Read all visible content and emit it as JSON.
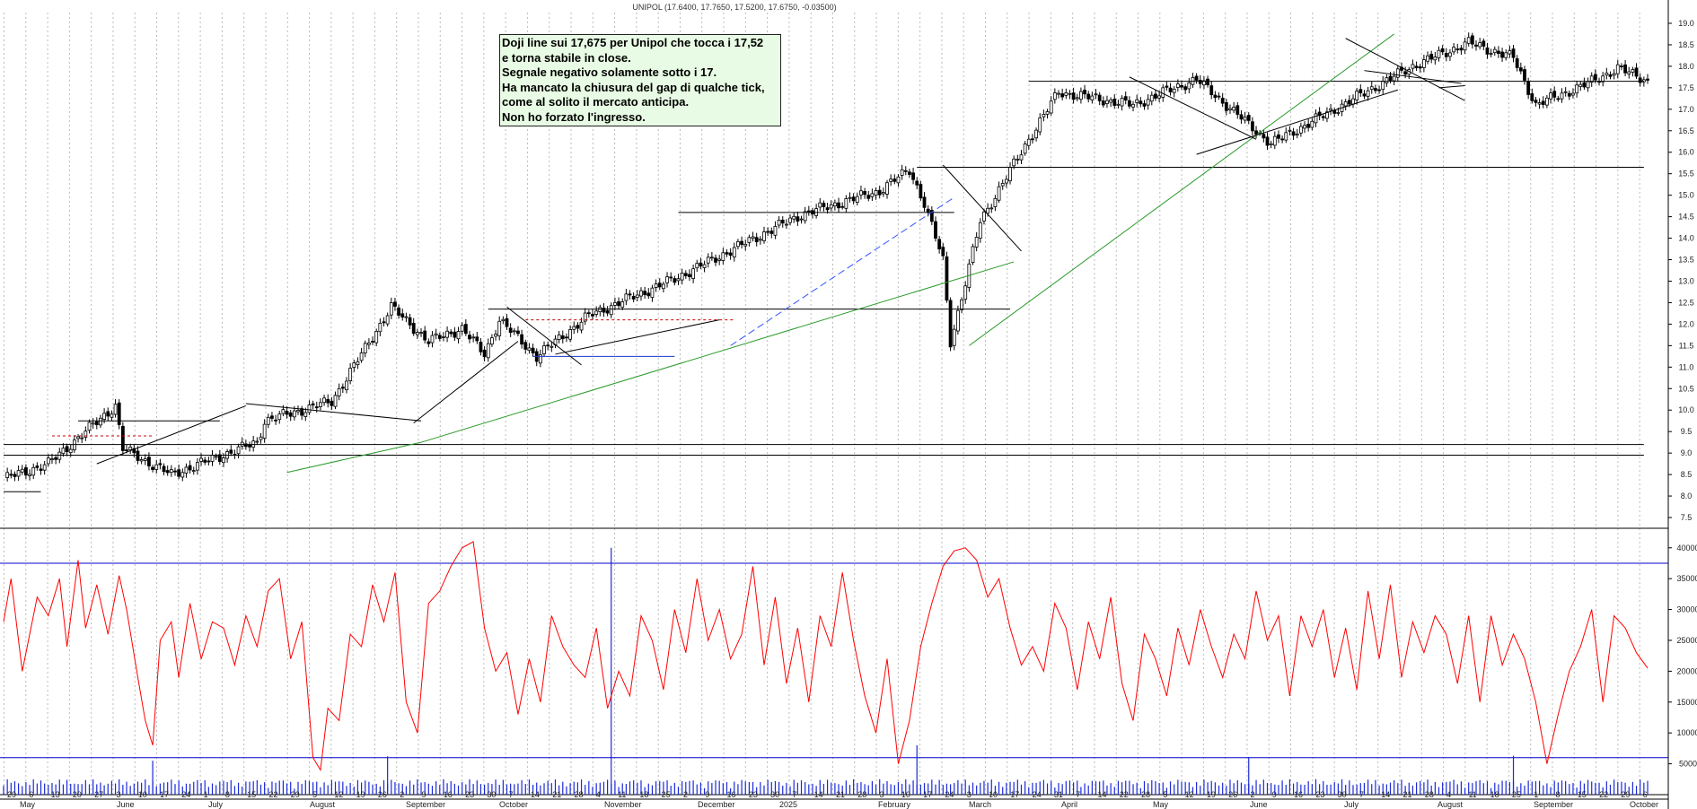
{
  "chart_data": {
    "type": "candlestick",
    "title": "UNIPOL (17.6400, 17.7650, 17.5200, 17.6750, -0.03500)",
    "price_ticks": [
      "7.5",
      "8.0",
      "8.5",
      "9.0",
      "9.5",
      "10.0",
      "10.5",
      "11.0",
      "11.5",
      "12.0",
      "12.5",
      "13.0",
      "13.5",
      "14.0",
      "14.5",
      "15.0",
      "15.5",
      "16.0",
      "16.5",
      "17.0",
      "17.5",
      "18.0",
      "18.5",
      "19.0"
    ],
    "volume_ticks": [
      "5000",
      "10000",
      "15000",
      "20000",
      "25000",
      "30000",
      "35000",
      "40000"
    ],
    "price_ylim": [
      7.25,
      19.25
    ],
    "volume_ylim": [
      0,
      42000
    ],
    "x_day_labels": [
      "29",
      "6",
      "13",
      "20",
      "27",
      "3",
      "10",
      "17",
      "24",
      "1",
      "8",
      "15",
      "22",
      "29",
      "5",
      "12",
      "19",
      "26",
      "2",
      "9",
      "16",
      "23",
      "30",
      "7",
      "14",
      "21",
      "28",
      "4",
      "11",
      "18",
      "25",
      "2",
      "9",
      "16",
      "23",
      "30",
      "7",
      "14",
      "21",
      "28",
      "3",
      "10",
      "17",
      "24",
      "3",
      "10",
      "17",
      "24",
      "31",
      "7",
      "14",
      "22",
      "28",
      "5",
      "12",
      "19",
      "26",
      "2",
      "9",
      "16",
      "23",
      "30",
      "7",
      "14",
      "21",
      "28",
      "4",
      "11",
      "18",
      "25",
      "1",
      "8",
      "15",
      "22",
      "29",
      "6"
    ],
    "x_month_labels": [
      "May",
      "June",
      "July",
      "August",
      "September",
      "October",
      "November",
      "December",
      "2025",
      "February",
      "March",
      "April",
      "May",
      "June",
      "July",
      "August",
      "September",
      "October"
    ],
    "price": {
      "closes": [
        8.35,
        8.45,
        8.6,
        8.9,
        9.1,
        9.3,
        9.55,
        9.65,
        9.45,
        9.25,
        9.05,
        9.2,
        9.4,
        9.3,
        9.5,
        9.75,
        9.85,
        9.95,
        10.05,
        9.8,
        9.5,
        8.8,
        8.9,
        9.0,
        9.1,
        9.25,
        9.4,
        9.6,
        9.7,
        9.55,
        9.9,
        10.3,
        10.55,
        10.75,
        10.95,
        11.4,
        12.0,
        12.3,
        11.75,
        11.6,
        11.5,
        11.35,
        11.25,
        11.5,
        11.85,
        11.5,
        11.4,
        11.55,
        11.8,
        11.95,
        11.85,
        12.1,
        12.3,
        12.7,
        12.95,
        13.15,
        13.35,
        13.1,
        13.5,
        13.85,
        14.2,
        14.5,
        14.25,
        14.45,
        14.7,
        15.1,
        15.45,
        15.3,
        14.8,
        14.1,
        12.3,
        13.2,
        14.3,
        14.75,
        15.3,
        15.9,
        16.6,
        17.0,
        17.25,
        17.3,
        17.25,
        17.45,
        17.6,
        17.1,
        16.9,
        16.6,
        16.4,
        16.25,
        16.6,
        16.85,
        17.1,
        17.6,
        17.95,
        18.35,
        18.3,
        18.2,
        17.75,
        17.4,
        17.5,
        17.65,
        17.95,
        17.675
      ],
      "pivots": [
        {
          "d": 0,
          "v": 8.4
        },
        {
          "d": 12,
          "v": 8.75
        },
        {
          "d": 30,
          "v": 10.1
        },
        {
          "d": 32,
          "v": 9.1
        },
        {
          "d": 45,
          "v": 8.5
        },
        {
          "d": 68,
          "v": 9.25
        },
        {
          "d": 70,
          "v": 9.75
        },
        {
          "d": 88,
          "v": 10.2
        },
        {
          "d": 104,
          "v": 12.4
        },
        {
          "d": 114,
          "v": 11.6
        },
        {
          "d": 123,
          "v": 11.9
        },
        {
          "d": 129,
          "v": 11.3
        },
        {
          "d": 133,
          "v": 12.1
        },
        {
          "d": 143,
          "v": 11.25
        },
        {
          "d": 157,
          "v": 12.2
        },
        {
          "d": 180,
          "v": 13.05
        },
        {
          "d": 214,
          "v": 14.55
        },
        {
          "d": 235,
          "v": 15.1
        },
        {
          "d": 243,
          "v": 15.6
        },
        {
          "d": 247,
          "v": 14.8
        },
        {
          "d": 252,
          "v": 13.5
        },
        {
          "d": 254,
          "v": 11.6
        },
        {
          "d": 257,
          "v": 12.6
        },
        {
          "d": 262,
          "v": 14.4
        },
        {
          "d": 275,
          "v": 16.3
        },
        {
          "d": 283,
          "v": 17.4
        },
        {
          "d": 303,
          "v": 17.1
        },
        {
          "d": 320,
          "v": 17.7
        },
        {
          "d": 340,
          "v": 16.2
        },
        {
          "d": 355,
          "v": 16.9
        },
        {
          "d": 378,
          "v": 18.0
        },
        {
          "d": 393,
          "v": 18.55
        },
        {
          "d": 405,
          "v": 18.2
        },
        {
          "d": 411,
          "v": 17.1
        },
        {
          "d": 425,
          "v": 17.6
        },
        {
          "d": 433,
          "v": 17.95
        },
        {
          "d": 441,
          "v": 17.675
        }
      ]
    },
    "oscillator": {
      "upper_level": 37500,
      "lower_level": 6000,
      "pivots": [
        {
          "d": 0,
          "v": 28000
        },
        {
          "d": 2,
          "v": 35000
        },
        {
          "d": 5,
          "v": 20000
        },
        {
          "d": 9,
          "v": 32000
        },
        {
          "d": 12,
          "v": 29000
        },
        {
          "d": 15,
          "v": 35000
        },
        {
          "d": 17,
          "v": 24000
        },
        {
          "d": 20,
          "v": 38000
        },
        {
          "d": 22,
          "v": 27000
        },
        {
          "d": 25,
          "v": 34000
        },
        {
          "d": 28,
          "v": 26000
        },
        {
          "d": 31,
          "v": 35500
        },
        {
          "d": 33,
          "v": 30000
        },
        {
          "d": 36,
          "v": 19000
        },
        {
          "d": 38,
          "v": 12000
        },
        {
          "d": 40,
          "v": 8000
        },
        {
          "d": 42,
          "v": 25000
        },
        {
          "d": 45,
          "v": 28000
        },
        {
          "d": 47,
          "v": 19000
        },
        {
          "d": 50,
          "v": 31000
        },
        {
          "d": 53,
          "v": 22000
        },
        {
          "d": 56,
          "v": 28000
        },
        {
          "d": 59,
          "v": 27000
        },
        {
          "d": 62,
          "v": 21000
        },
        {
          "d": 65,
          "v": 29000
        },
        {
          "d": 68,
          "v": 24000
        },
        {
          "d": 71,
          "v": 33000
        },
        {
          "d": 74,
          "v": 35000
        },
        {
          "d": 77,
          "v": 22000
        },
        {
          "d": 80,
          "v": 28000
        },
        {
          "d": 83,
          "v": 6000
        },
        {
          "d": 85,
          "v": 4000
        },
        {
          "d": 87,
          "v": 14000
        },
        {
          "d": 90,
          "v": 12000
        },
        {
          "d": 93,
          "v": 26000
        },
        {
          "d": 96,
          "v": 24000
        },
        {
          "d": 99,
          "v": 34000
        },
        {
          "d": 102,
          "v": 28000
        },
        {
          "d": 105,
          "v": 36000
        },
        {
          "d": 108,
          "v": 15000
        },
        {
          "d": 111,
          "v": 10000
        },
        {
          "d": 114,
          "v": 31000
        },
        {
          "d": 117,
          "v": 33000
        },
        {
          "d": 120,
          "v": 37000
        },
        {
          "d": 123,
          "v": 40000
        },
        {
          "d": 126,
          "v": 41000
        },
        {
          "d": 129,
          "v": 27000
        },
        {
          "d": 132,
          "v": 20000
        },
        {
          "d": 135,
          "v": 23000
        },
        {
          "d": 138,
          "v": 13000
        },
        {
          "d": 141,
          "v": 22000
        },
        {
          "d": 144,
          "v": 15000
        },
        {
          "d": 147,
          "v": 29000
        },
        {
          "d": 150,
          "v": 24000
        },
        {
          "d": 153,
          "v": 21000
        },
        {
          "d": 156,
          "v": 19000
        },
        {
          "d": 159,
          "v": 27000
        },
        {
          "d": 162,
          "v": 14000
        },
        {
          "d": 165,
          "v": 20000
        },
        {
          "d": 168,
          "v": 16000
        },
        {
          "d": 171,
          "v": 29000
        },
        {
          "d": 174,
          "v": 25000
        },
        {
          "d": 177,
          "v": 17000
        },
        {
          "d": 180,
          "v": 30000
        },
        {
          "d": 183,
          "v": 23000
        },
        {
          "d": 186,
          "v": 35000
        },
        {
          "d": 189,
          "v": 25000
        },
        {
          "d": 192,
          "v": 30000
        },
        {
          "d": 195,
          "v": 22000
        },
        {
          "d": 198,
          "v": 26000
        },
        {
          "d": 201,
          "v": 37000
        },
        {
          "d": 204,
          "v": 21000
        },
        {
          "d": 207,
          "v": 32000
        },
        {
          "d": 210,
          "v": 18000
        },
        {
          "d": 213,
          "v": 27000
        },
        {
          "d": 216,
          "v": 15000
        },
        {
          "d": 219,
          "v": 29000
        },
        {
          "d": 222,
          "v": 24000
        },
        {
          "d": 225,
          "v": 36000
        },
        {
          "d": 228,
          "v": 25000
        },
        {
          "d": 231,
          "v": 16000
        },
        {
          "d": 234,
          "v": 10000
        },
        {
          "d": 237,
          "v": 22000
        },
        {
          "d": 240,
          "v": 5000
        },
        {
          "d": 243,
          "v": 12000
        },
        {
          "d": 246,
          "v": 24000
        },
        {
          "d": 249,
          "v": 31000
        },
        {
          "d": 252,
          "v": 37000
        },
        {
          "d": 255,
          "v": 39500
        },
        {
          "d": 258,
          "v": 40000
        },
        {
          "d": 261,
          "v": 38000
        },
        {
          "d": 264,
          "v": 32000
        },
        {
          "d": 267,
          "v": 35000
        },
        {
          "d": 270,
          "v": 27000
        },
        {
          "d": 273,
          "v": 21000
        },
        {
          "d": 276,
          "v": 24000
        },
        {
          "d": 279,
          "v": 20000
        },
        {
          "d": 282,
          "v": 31000
        },
        {
          "d": 285,
          "v": 27000
        },
        {
          "d": 288,
          "v": 17000
        },
        {
          "d": 291,
          "v": 28000
        },
        {
          "d": 294,
          "v": 22000
        },
        {
          "d": 297,
          "v": 32000
        },
        {
          "d": 300,
          "v": 18000
        },
        {
          "d": 303,
          "v": 12000
        },
        {
          "d": 306,
          "v": 26000
        },
        {
          "d": 309,
          "v": 22000
        },
        {
          "d": 312,
          "v": 16000
        },
        {
          "d": 315,
          "v": 27000
        },
        {
          "d": 318,
          "v": 21000
        },
        {
          "d": 321,
          "v": 30000
        },
        {
          "d": 324,
          "v": 24000
        },
        {
          "d": 327,
          "v": 19000
        },
        {
          "d": 330,
          "v": 26000
        },
        {
          "d": 333,
          "v": 22000
        },
        {
          "d": 336,
          "v": 33000
        },
        {
          "d": 339,
          "v": 25000
        },
        {
          "d": 342,
          "v": 29000
        },
        {
          "d": 345,
          "v": 16000
        },
        {
          "d": 348,
          "v": 29000
        },
        {
          "d": 351,
          "v": 24000
        },
        {
          "d": 354,
          "v": 30000
        },
        {
          "d": 357,
          "v": 19000
        },
        {
          "d": 360,
          "v": 27000
        },
        {
          "d": 363,
          "v": 17000
        },
        {
          "d": 366,
          "v": 33000
        },
        {
          "d": 369,
          "v": 22000
        },
        {
          "d": 372,
          "v": 34000
        },
        {
          "d": 375,
          "v": 19000
        },
        {
          "d": 378,
          "v": 28000
        },
        {
          "d": 381,
          "v": 23000
        },
        {
          "d": 384,
          "v": 29000
        },
        {
          "d": 387,
          "v": 26000
        },
        {
          "d": 390,
          "v": 18000
        },
        {
          "d": 393,
          "v": 29000
        },
        {
          "d": 396,
          "v": 15000
        },
        {
          "d": 399,
          "v": 29000
        },
        {
          "d": 402,
          "v": 21000
        },
        {
          "d": 405,
          "v": 26000
        },
        {
          "d": 408,
          "v": 22000
        },
        {
          "d": 411,
          "v": 15000
        },
        {
          "d": 414,
          "v": 5000
        },
        {
          "d": 417,
          "v": 13000
        },
        {
          "d": 420,
          "v": 20000
        },
        {
          "d": 423,
          "v": 24000
        },
        {
          "d": 426,
          "v": 30000
        },
        {
          "d": 429,
          "v": 15000
        },
        {
          "d": 432,
          "v": 29000
        },
        {
          "d": 435,
          "v": 27000
        },
        {
          "d": 438,
          "v": 23000
        },
        {
          "d": 441,
          "v": 20500
        }
      ]
    },
    "volume_spikes": [
      {
        "d": 167,
        "v": 5500
      },
      {
        "d": 433,
        "v": 6200
      },
      {
        "d": 1031,
        "v": 8000
      },
      {
        "d": 1401,
        "v": 6100
      },
      {
        "d": 1700,
        "v": 6300
      }
    ],
    "annotation_lines": [
      "Doji line sui 17,675 per Unipol che tocca i 17,52",
      "e torna stabile in close.",
      "Segnale negativo solamente sotto i 17.",
      "Ha mancato la chiusura del gap di qualche tick,",
      "come al solito il mercato anticipa.",
      "Non ho forzato l'ingresso."
    ],
    "colors": {
      "candle": "#000000",
      "oscillator": "#ff0000",
      "levels": "#0000cc",
      "trend_green": "#2a9a2a",
      "trend_blue_dashed": "#3355ff",
      "resistance_red_dashed": "#cc0000",
      "volume": "#1a2ad8",
      "grid": "#bbbbbb",
      "note_background": "#e8fbe4"
    }
  }
}
